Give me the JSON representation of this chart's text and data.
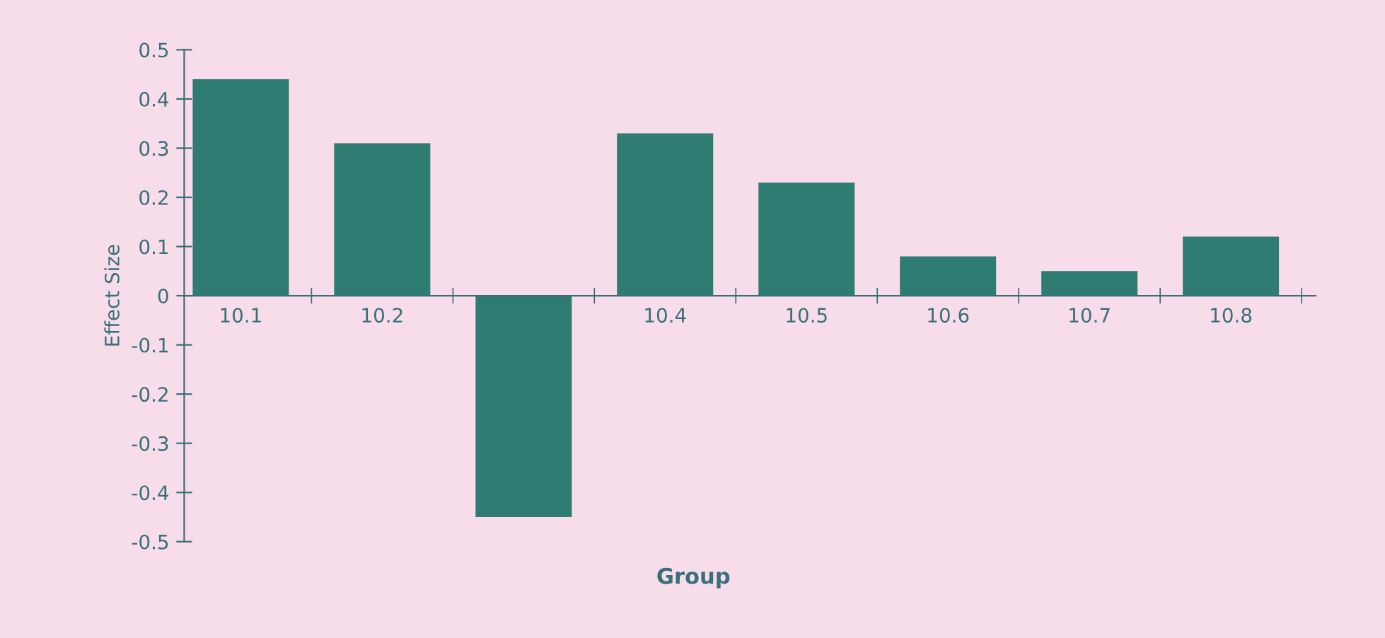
{
  "chart_data": {
    "type": "bar",
    "xlabel": "Group",
    "ylabel": "Effect Size",
    "categories": [
      "10.1",
      "10.2",
      null,
      "10.4",
      "10.5",
      "10.6",
      "10.7",
      "10.8"
    ],
    "values": [
      0.44,
      0.31,
      -0.45,
      0.33,
      0.23,
      0.08,
      0.05,
      0.12
    ],
    "color": "#2e7c72",
    "ylim": [
      -0.5,
      0.5
    ],
    "yticks": [
      0.5,
      0.4,
      0.3,
      0.2,
      0.1,
      0,
      -0.1,
      -0.2,
      -0.3,
      -0.4,
      -0.5
    ],
    "grid": false,
    "legend": false
  }
}
